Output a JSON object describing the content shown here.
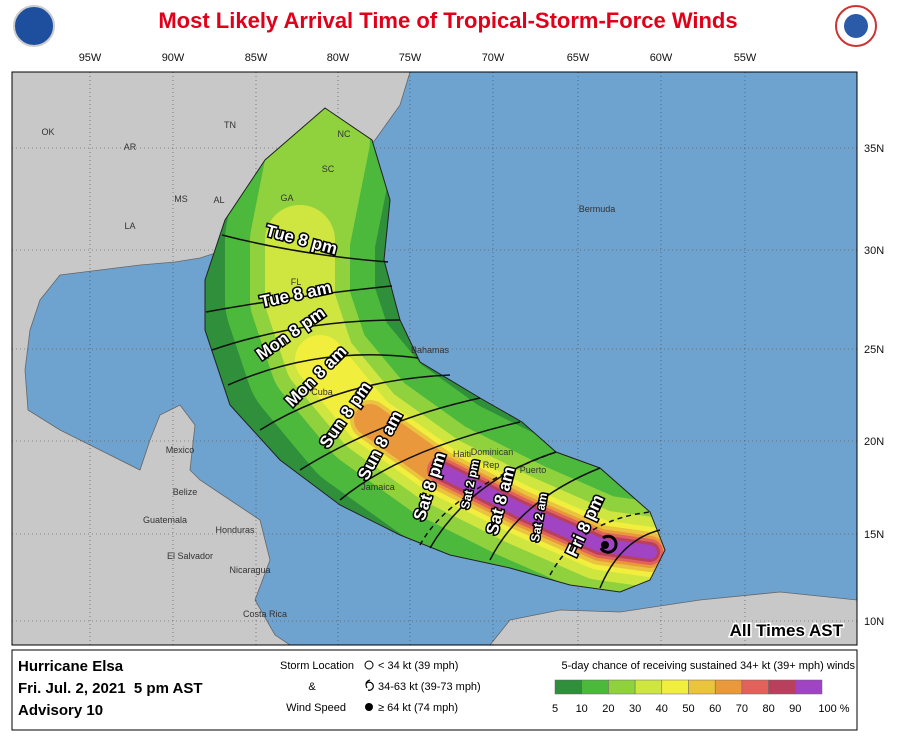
{
  "title": "Most Likely Arrival Time of Tropical-Storm-Force Winds",
  "longitudes": [
    "95W",
    "90W",
    "85W",
    "80W",
    "75W",
    "70W",
    "65W",
    "60W",
    "55W"
  ],
  "latitudes": [
    "35N",
    "30N",
    "25N",
    "20N",
    "15N",
    "10N"
  ],
  "places": [
    "OK",
    "AR",
    "TN",
    "NC",
    "SC",
    "GA",
    "MS",
    "AL",
    "LA",
    "FL",
    "Bermuda",
    "Bahamas",
    "Cuba",
    "Haiti",
    "Dominican",
    "Rep",
    "Puerto",
    "Mexico",
    "Belize",
    "Guatemala",
    "Honduras",
    "El Salvador",
    "Nicaragua",
    "Costa Rica",
    "Jamaica"
  ],
  "arrival_times": [
    "Tue 8 pm",
    "Tue 8 am",
    "Mon 8 pm",
    "Mon 8 am",
    "Sun 8 pm",
    "Sun 8 am",
    "Sat 8 pm",
    "Sat 2 pm",
    "Sat 8 am",
    "Sat 2 am",
    "Fri 8 pm"
  ],
  "time_zone_note": "All Times AST",
  "info": {
    "storm": "Hurricane Elsa",
    "date": "Fri. Jul. 2, 2021  5 pm AST",
    "advisory": "Advisory 10"
  },
  "storm_key": {
    "line1": "Storm Location",
    "line2": "&",
    "line3": "Wind Speed",
    "items": [
      "< 34 kt (39 mph)",
      "34-63 kt (39-73 mph)",
      "≥ 64 kt (74 mph)"
    ]
  },
  "scale": {
    "title": "5-day chance of receiving sustained 34+ kt (39+ mph) winds",
    "labels": [
      "5",
      "10",
      "20",
      "30",
      "40",
      "50",
      "60",
      "70",
      "80",
      "90",
      "100 %"
    ],
    "colors": [
      "#2f8f3a",
      "#4cb83c",
      "#8fd23e",
      "#cfe640",
      "#f2ee3e",
      "#eac43e",
      "#e9993c",
      "#e0625a",
      "#b8405c",
      "#a044c4"
    ]
  }
}
